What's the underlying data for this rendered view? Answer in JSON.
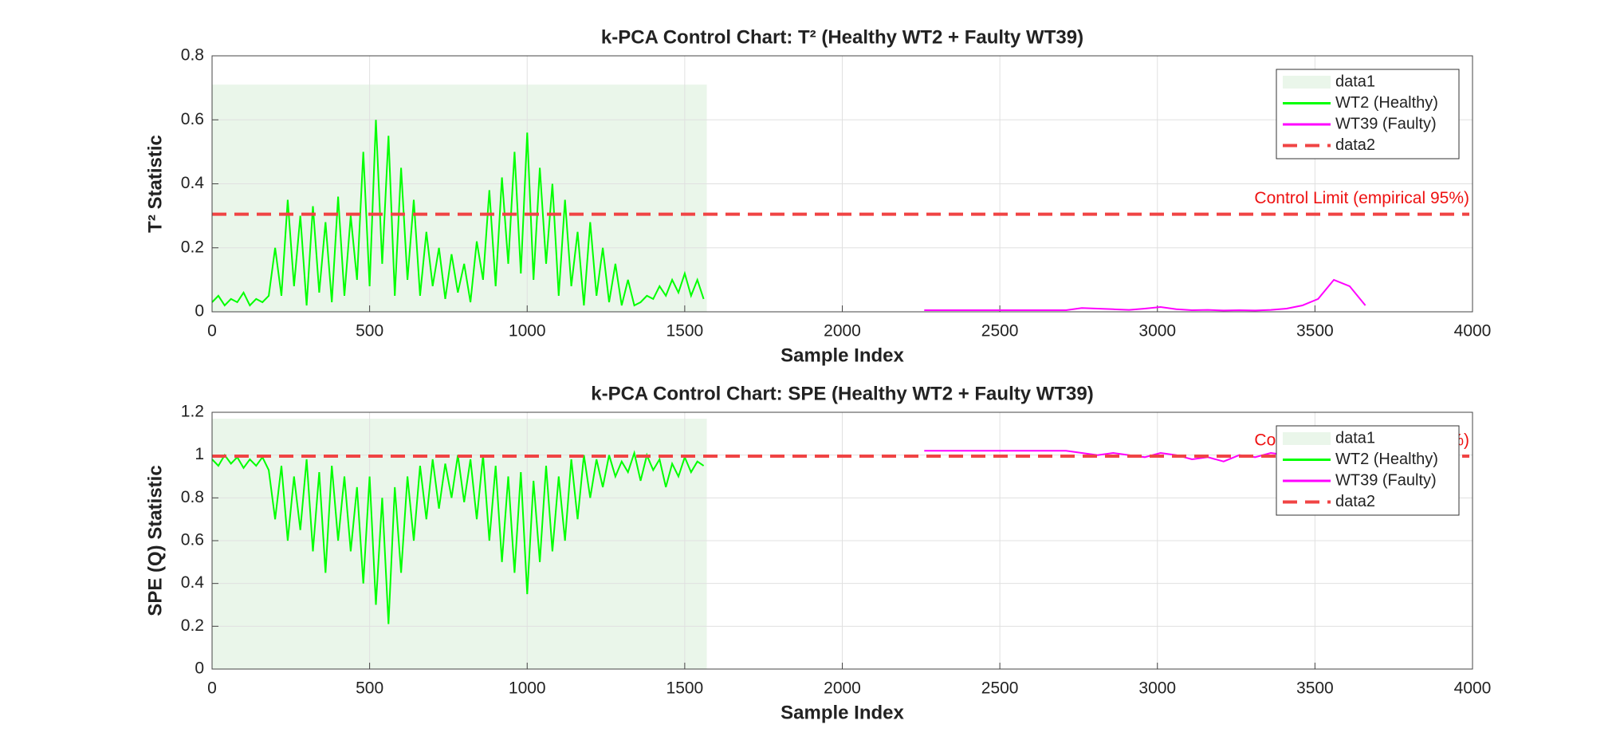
{
  "chart_data": [
    {
      "type": "line",
      "title": "k-PCA  Control  Chart: T² (Healthy  WT2  +  Faulty  WT39)",
      "xlabel": "Sample Index",
      "ylabel": "T² Statistic",
      "xlim": [
        0,
        4000
      ],
      "xticks": [
        0,
        500,
        1000,
        1500,
        2000,
        2500,
        3000,
        3500,
        4000
      ],
      "ylim": [
        0,
        0.8
      ],
      "yticks": [
        0,
        0.2,
        0.4,
        0.6,
        0.8
      ],
      "grid": true,
      "legend": "northeast",
      "region": {
        "name": "data1",
        "color": "#eaf6ea",
        "x": [
          0,
          1570
        ],
        "y": [
          0,
          0.71
        ]
      },
      "series": [
        {
          "name": "WT2 (Healthy)",
          "color": "#00ff00",
          "x": [
            0,
            20,
            40,
            60,
            80,
            100,
            120,
            140,
            160,
            180,
            200,
            220,
            240,
            260,
            280,
            300,
            320,
            340,
            360,
            380,
            400,
            420,
            440,
            460,
            480,
            500,
            520,
            540,
            560,
            580,
            600,
            620,
            640,
            660,
            680,
            700,
            720,
            740,
            760,
            780,
            800,
            820,
            840,
            860,
            880,
            900,
            920,
            940,
            960,
            980,
            1000,
            1020,
            1040,
            1060,
            1080,
            1100,
            1120,
            1140,
            1160,
            1180,
            1200,
            1220,
            1240,
            1260,
            1280,
            1300,
            1320,
            1340,
            1360,
            1380,
            1400,
            1420,
            1440,
            1460,
            1480,
            1500,
            1520,
            1540,
            1560
          ],
          "values": [
            0.03,
            0.05,
            0.02,
            0.04,
            0.03,
            0.06,
            0.02,
            0.04,
            0.03,
            0.05,
            0.2,
            0.05,
            0.35,
            0.08,
            0.3,
            0.02,
            0.33,
            0.06,
            0.28,
            0.03,
            0.36,
            0.05,
            0.3,
            0.1,
            0.5,
            0.08,
            0.6,
            0.15,
            0.55,
            0.05,
            0.45,
            0.1,
            0.35,
            0.05,
            0.25,
            0.08,
            0.2,
            0.04,
            0.18,
            0.06,
            0.15,
            0.03,
            0.22,
            0.1,
            0.38,
            0.08,
            0.42,
            0.15,
            0.5,
            0.12,
            0.56,
            0.1,
            0.45,
            0.15,
            0.4,
            0.05,
            0.35,
            0.08,
            0.25,
            0.02,
            0.28,
            0.05,
            0.2,
            0.03,
            0.15,
            0.02,
            0.1,
            0.02,
            0.03,
            0.05,
            0.04,
            0.08,
            0.05,
            0.1,
            0.06,
            0.12,
            0.05,
            0.1,
            0.04
          ]
        },
        {
          "name": "WT39 (Faulty)",
          "color": "#ff00ff",
          "x": [
            2260,
            2310,
            2360,
            2410,
            2460,
            2510,
            2560,
            2610,
            2660,
            2710,
            2760,
            2810,
            2860,
            2910,
            2960,
            3010,
            3060,
            3110,
            3160,
            3210,
            3260,
            3310,
            3360,
            3410,
            3460,
            3510,
            3560,
            3610,
            3660
          ],
          "values": [
            0.005,
            0.005,
            0.005,
            0.005,
            0.005,
            0.005,
            0.005,
            0.005,
            0.005,
            0.005,
            0.012,
            0.01,
            0.008,
            0.006,
            0.01,
            0.015,
            0.008,
            0.005,
            0.006,
            0.004,
            0.005,
            0.004,
            0.006,
            0.01,
            0.02,
            0.04,
            0.1,
            0.08,
            0.02
          ]
        }
      ],
      "threshold": {
        "name": "data2",
        "value": 0.305,
        "color": "#f04444"
      },
      "annotation": "Control Limit (empirical 95%)"
    },
    {
      "type": "line",
      "title": "k-PCA  Control  Chart:  SPE  (Healthy  WT2  +  Faulty  WT39)",
      "xlabel": "Sample Index",
      "ylabel": "SPE (Q) Statistic",
      "xlim": [
        0,
        4000
      ],
      "xticks": [
        0,
        500,
        1000,
        1500,
        2000,
        2500,
        3000,
        3500,
        4000
      ],
      "ylim": [
        0,
        1.2
      ],
      "yticks": [
        0,
        0.2,
        0.4,
        0.6,
        0.8,
        1,
        1.2
      ],
      "grid": true,
      "legend": "northeast",
      "region": {
        "name": "data1",
        "color": "#eaf6ea",
        "x": [
          0,
          1570
        ],
        "y": [
          0,
          1.17
        ]
      },
      "series": [
        {
          "name": "WT2 (Healthy)",
          "color": "#00ff00",
          "x": [
            0,
            20,
            40,
            60,
            80,
            100,
            120,
            140,
            160,
            180,
            200,
            220,
            240,
            260,
            280,
            300,
            320,
            340,
            360,
            380,
            400,
            420,
            440,
            460,
            480,
            500,
            520,
            540,
            560,
            580,
            600,
            620,
            640,
            660,
            680,
            700,
            720,
            740,
            760,
            780,
            800,
            820,
            840,
            860,
            880,
            900,
            920,
            940,
            960,
            980,
            1000,
            1020,
            1040,
            1060,
            1080,
            1100,
            1120,
            1140,
            1160,
            1180,
            1200,
            1220,
            1240,
            1260,
            1280,
            1300,
            1320,
            1340,
            1360,
            1380,
            1400,
            1420,
            1440,
            1460,
            1480,
            1500,
            1520,
            1540,
            1560
          ],
          "values": [
            0.98,
            0.95,
            1.0,
            0.96,
            0.99,
            0.94,
            0.98,
            0.95,
            0.99,
            0.93,
            0.7,
            0.95,
            0.6,
            0.9,
            0.65,
            0.98,
            0.55,
            0.92,
            0.45,
            0.95,
            0.6,
            0.9,
            0.55,
            0.85,
            0.4,
            0.9,
            0.3,
            0.8,
            0.21,
            0.85,
            0.45,
            0.9,
            0.6,
            0.95,
            0.7,
            0.98,
            0.75,
            0.96,
            0.8,
            1.0,
            0.78,
            0.98,
            0.7,
            1.0,
            0.6,
            0.95,
            0.5,
            0.9,
            0.45,
            0.92,
            0.35,
            0.88,
            0.5,
            0.95,
            0.55,
            0.9,
            0.6,
            0.98,
            0.7,
            1.0,
            0.8,
            0.98,
            0.85,
            1.0,
            0.9,
            0.97,
            0.92,
            1.01,
            0.88,
            1.0,
            0.93,
            0.98,
            0.85,
            0.96,
            0.9,
            0.99,
            0.92,
            0.97,
            0.95
          ]
        },
        {
          "name": "WT39 (Faulty)",
          "color": "#ff00ff",
          "x": [
            2260,
            2310,
            2360,
            2410,
            2460,
            2510,
            2560,
            2610,
            2660,
            2710,
            2760,
            2810,
            2860,
            2910,
            2960,
            3010,
            3060,
            3110,
            3160,
            3210,
            3260,
            3310,
            3360,
            3410,
            3460,
            3510,
            3560,
            3610,
            3660
          ],
          "values": [
            1.02,
            1.02,
            1.02,
            1.02,
            1.02,
            1.02,
            1.02,
            1.02,
            1.02,
            1.02,
            1.01,
            1.0,
            1.01,
            1.0,
            0.99,
            1.01,
            1.0,
            0.98,
            0.99,
            0.97,
            1.0,
            0.99,
            1.01,
            1.0,
            1.0,
            1.01,
            1.0,
            1.01,
            1.0
          ]
        }
      ],
      "threshold": {
        "name": "data2",
        "value": 0.995,
        "color": "#f04444"
      },
      "annotation": "Control Limit (empirical 95%)"
    }
  ]
}
